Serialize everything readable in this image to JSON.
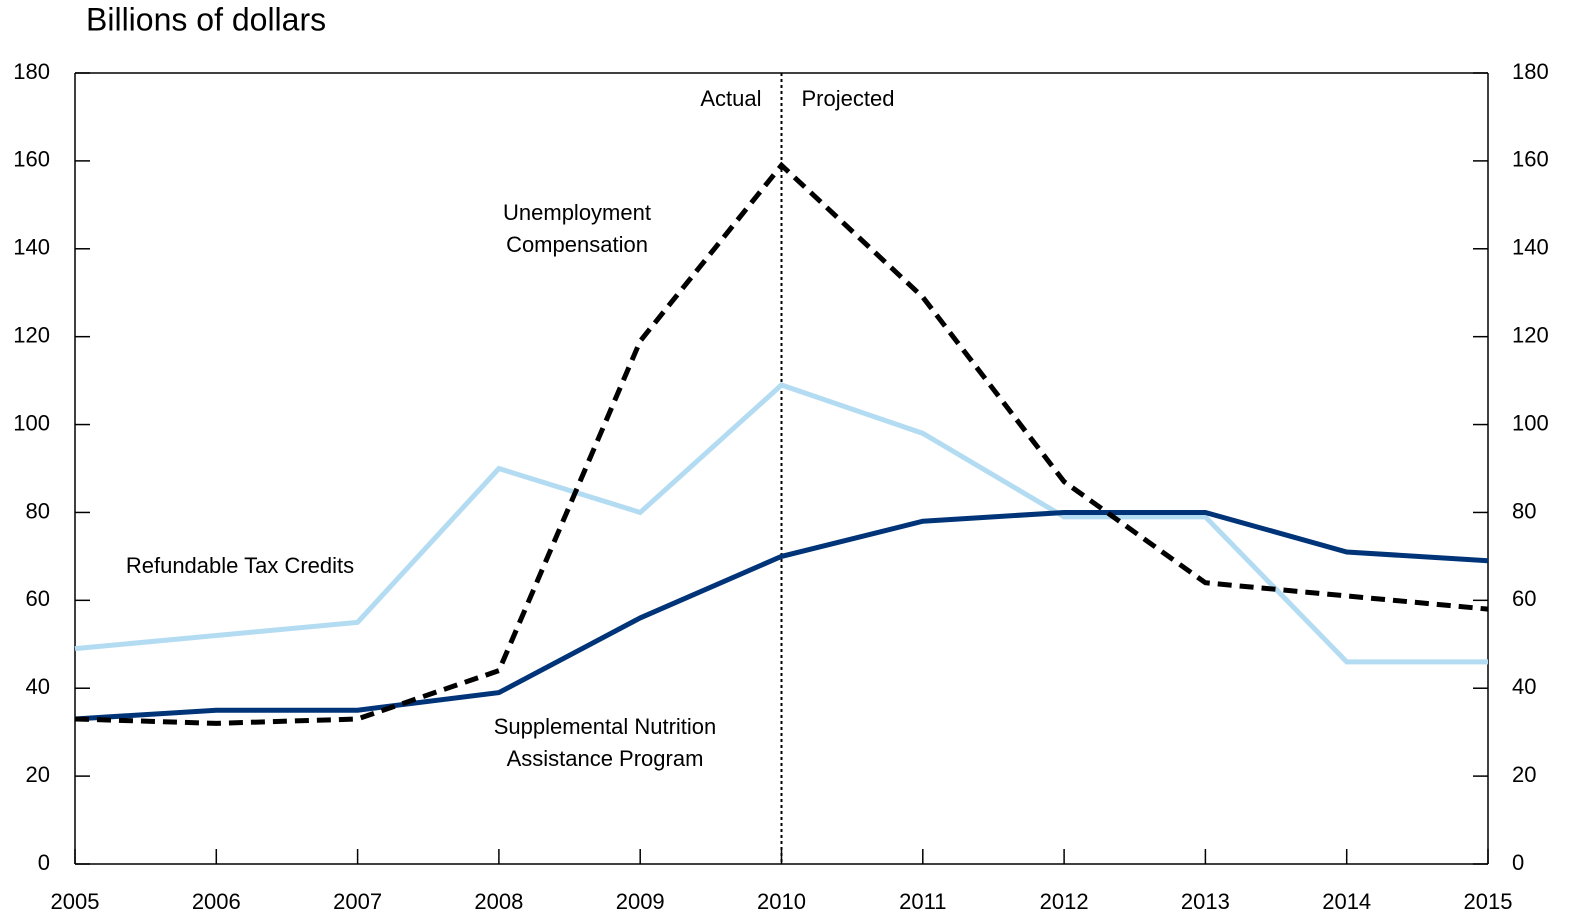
{
  "chart_data": {
    "type": "line",
    "title": "Billions of dollars",
    "x": [
      2005,
      2006,
      2007,
      2008,
      2009,
      2010,
      2011,
      2012,
      2013,
      2014,
      2015
    ],
    "xlim": [
      2005,
      2015
    ],
    "xticks": [
      2005,
      2006,
      2007,
      2008,
      2009,
      2010,
      2011,
      2012,
      2013,
      2014,
      2015
    ],
    "ylim": [
      0,
      180
    ],
    "yticks": [
      0,
      20,
      40,
      60,
      80,
      100,
      120,
      140,
      160,
      180
    ],
    "y2lim": [
      0,
      180
    ],
    "y2ticks": [
      0,
      20,
      40,
      60,
      80,
      100,
      120,
      140,
      160,
      180
    ],
    "phases": {
      "at": 2010,
      "before": "Actual",
      "after": "Projected"
    },
    "series": [
      {
        "name": "Unemployment Compensation",
        "color": "#000000",
        "style": "dashed",
        "values": [
          33,
          32,
          33,
          44,
          119,
          159,
          129,
          87,
          64,
          61,
          58
        ]
      },
      {
        "name": "Refundable Tax Credits",
        "color": "#b3dcf2",
        "style": "solid",
        "values": [
          49,
          52,
          55,
          90,
          80,
          109,
          98,
          79,
          79,
          46,
          46
        ]
      },
      {
        "name": "Supplemental Nutrition Assistance Program",
        "color": "#003478",
        "style": "solid",
        "values": [
          33,
          35,
          35,
          39,
          56,
          70,
          78,
          80,
          80,
          71,
          69
        ]
      }
    ]
  }
}
